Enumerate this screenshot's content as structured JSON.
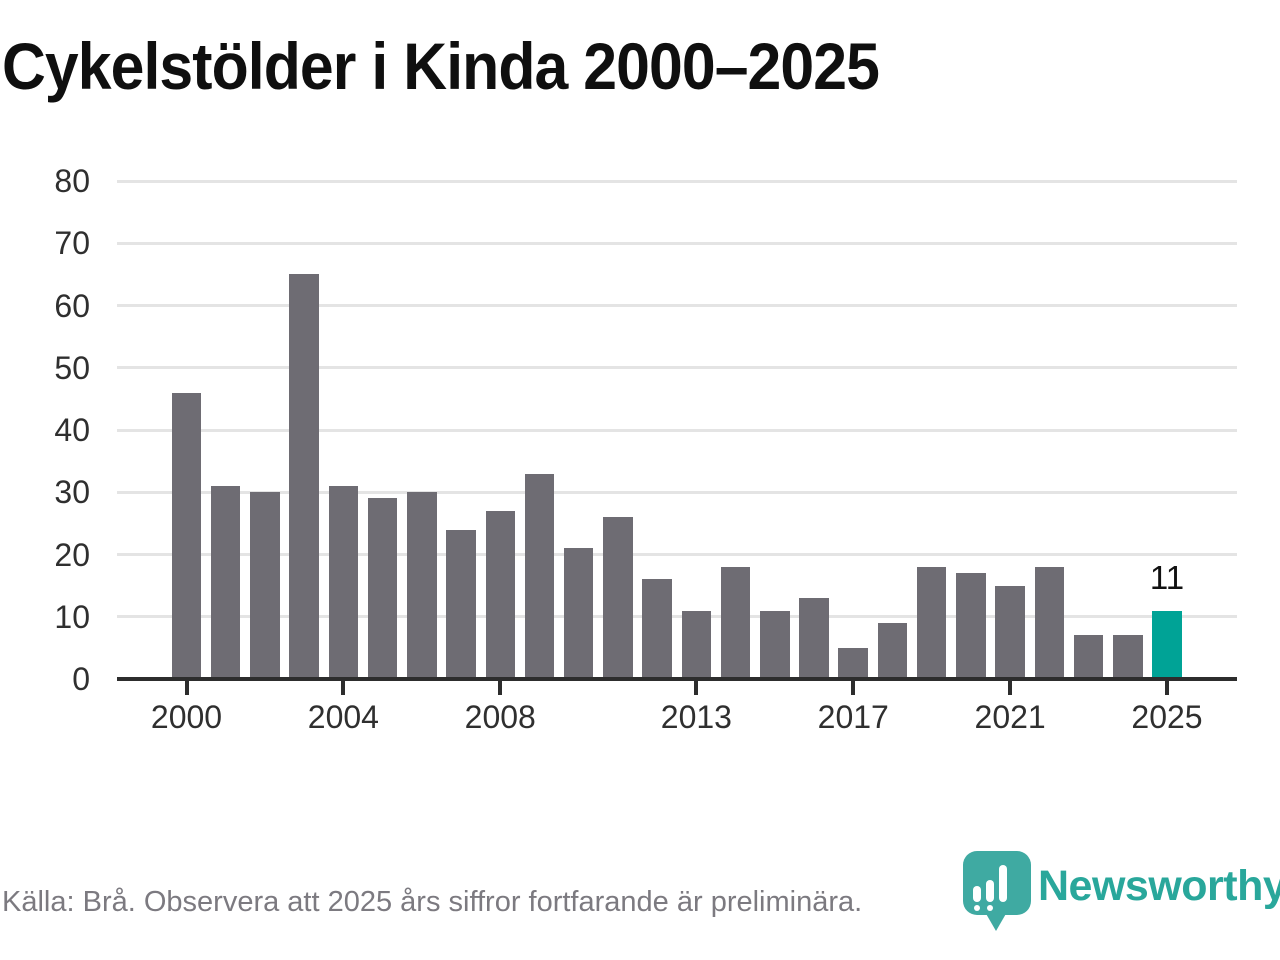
{
  "header": {
    "title": "Cykelstölder i Kinda 2000–2025"
  },
  "chart_data": {
    "type": "bar",
    "title": "Cykelstölder i Kinda 2000–2025",
    "categories": [
      2000,
      2001,
      2002,
      2003,
      2004,
      2005,
      2006,
      2007,
      2008,
      2009,
      2010,
      2011,
      2012,
      2013,
      2014,
      2015,
      2016,
      2017,
      2018,
      2019,
      2020,
      2021,
      2022,
      2023,
      2024,
      2025
    ],
    "values": [
      46,
      31,
      30,
      65,
      31,
      29,
      30,
      24,
      27,
      33,
      21,
      26,
      16,
      11,
      18,
      11,
      13,
      5,
      9,
      18,
      17,
      15,
      18,
      7,
      7,
      11
    ],
    "xlabel": "",
    "ylabel": "",
    "ylim": [
      0,
      80
    ],
    "yticks": [
      0,
      10,
      20,
      30,
      40,
      50,
      60,
      70,
      80
    ],
    "xtick_labels": [
      "2000",
      "2004",
      "2008",
      "2013",
      "2017",
      "2021",
      "2025"
    ],
    "grid": true,
    "legend": false,
    "bar_color": "#6e6c73",
    "highlight": {
      "category": "2025",
      "color": "#00a396",
      "data_label": "11"
    }
  },
  "footer": {
    "source_text": "Källa: Brå. Observera att 2025 års siffror fortfarande är preliminära.",
    "logo_text": "Newsworthy"
  },
  "colors": {
    "background": "#ffffff",
    "title_text": "#0f0f0f",
    "axis": "#2d2d2d",
    "gridline": "#e4e4e4",
    "tick_text": "#2f2f2f",
    "muted_text": "#7c7a80",
    "bar": "#6e6c73",
    "highlight": "#00a396",
    "logo_mark": "#3faaa2",
    "logo_text": "#29a79b"
  }
}
